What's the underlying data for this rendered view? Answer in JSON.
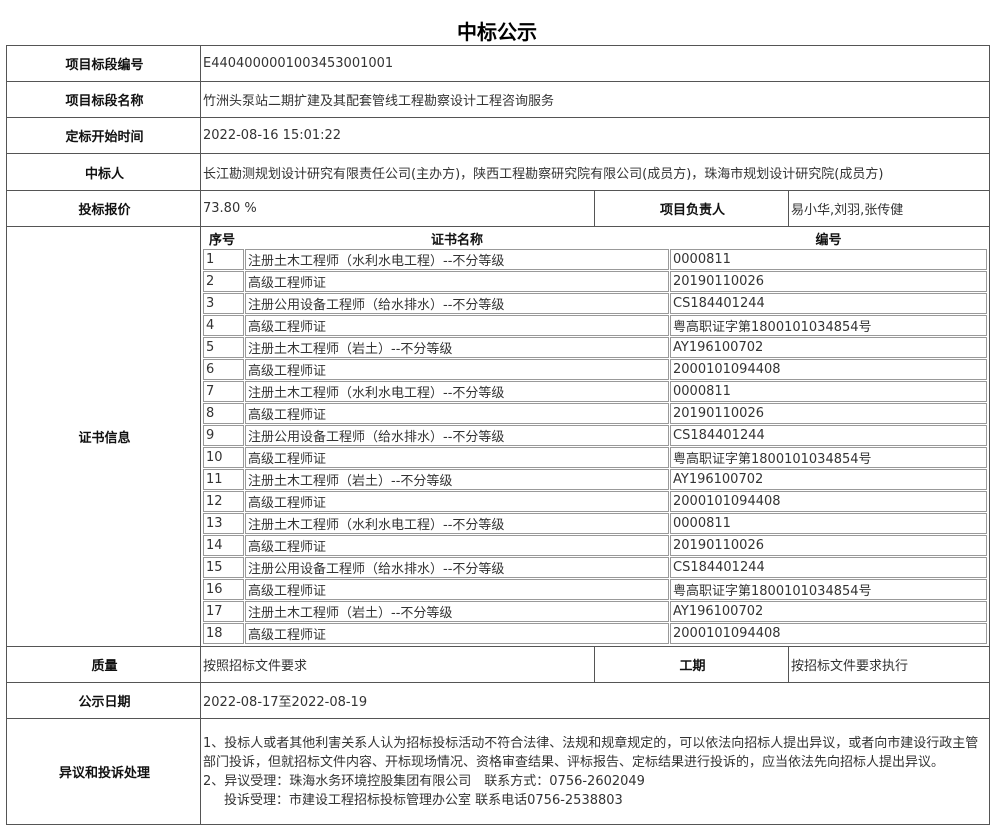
{
  "title": "中标公示",
  "rows": {
    "section_no": {
      "label": "项目标段编号",
      "value": "E4404000001003453001001"
    },
    "section_name": {
      "label": "项目标段名称",
      "value": "竹洲头泵站二期扩建及其配套管线工程勘察设计工程咨询服务"
    },
    "start_time": {
      "label": "定标开始时间",
      "value": "2022-08-16 15:01:22"
    },
    "winner": {
      "label": "中标人",
      "value": "长江勘测规划设计研究有限责任公司(主办方)，陕西工程勘察研究院有限公司(成员方)，珠海市规划设计研究院(成员方)"
    },
    "bid_price": {
      "label": "投标报价",
      "value": "73.80 %"
    },
    "manager": {
      "label": "项目负责人",
      "value": "易小华,刘羽,张传健"
    },
    "quality": {
      "label": "质量",
      "value": "按照招标文件要求"
    },
    "period": {
      "label": "工期",
      "value": "按招标文件要求执行"
    },
    "publicity": {
      "label": "公示日期",
      "value": "2022-08-17至2022-08-19"
    },
    "objection": {
      "label": "异议和投诉处理",
      "line1": "1、投标人或者其他利害关系人认为招标投标活动不符合法律、法规和规章规定的，可以依法向招标人提出异议，或者向市建设行政主管部门投诉，但就招标文件内容、开标现场情况、资格审查结果、评标报告、定标结果进行投诉的，应当依法先向招标人提出异议。",
      "line2": "2、异议受理：珠海水务环境控股集团有限公司　联系方式：0756-2602049",
      "line3": "投诉受理：市建设工程招标投标管理办公室 联系电话0756-2538803"
    }
  },
  "certs": {
    "label": "证书信息",
    "headers": [
      "序号",
      "证书名称",
      "编号"
    ],
    "items": [
      [
        "1",
        "注册土木工程师（水利水电工程）--不分等级",
        "0000811"
      ],
      [
        "2",
        "高级工程师证",
        "20190110026"
      ],
      [
        "3",
        "注册公用设备工程师（给水排水）--不分等级",
        "CS184401244"
      ],
      [
        "4",
        "高级工程师证",
        "粤高职证字第1800101034854号"
      ],
      [
        "5",
        "注册土木工程师（岩土）--不分等级",
        "AY196100702"
      ],
      [
        "6",
        "高级工程师证",
        "2000101094408"
      ],
      [
        "7",
        "注册土木工程师（水利水电工程）--不分等级",
        "0000811"
      ],
      [
        "8",
        "高级工程师证",
        "20190110026"
      ],
      [
        "9",
        "注册公用设备工程师（给水排水）--不分等级",
        "CS184401244"
      ],
      [
        "10",
        "高级工程师证",
        "粤高职证字第1800101034854号"
      ],
      [
        "11",
        "注册土木工程师（岩土）--不分等级",
        "AY196100702"
      ],
      [
        "12",
        "高级工程师证",
        "2000101094408"
      ],
      [
        "13",
        "注册土木工程师（水利水电工程）--不分等级",
        "0000811"
      ],
      [
        "14",
        "高级工程师证",
        "20190110026"
      ],
      [
        "15",
        "注册公用设备工程师（给水排水）--不分等级",
        "CS184401244"
      ],
      [
        "16",
        "高级工程师证",
        "粤高职证字第1800101034854号"
      ],
      [
        "17",
        "注册土木工程师（岩土）--不分等级",
        "AY196100702"
      ],
      [
        "18",
        "高级工程师证",
        "2000101094408"
      ]
    ]
  }
}
